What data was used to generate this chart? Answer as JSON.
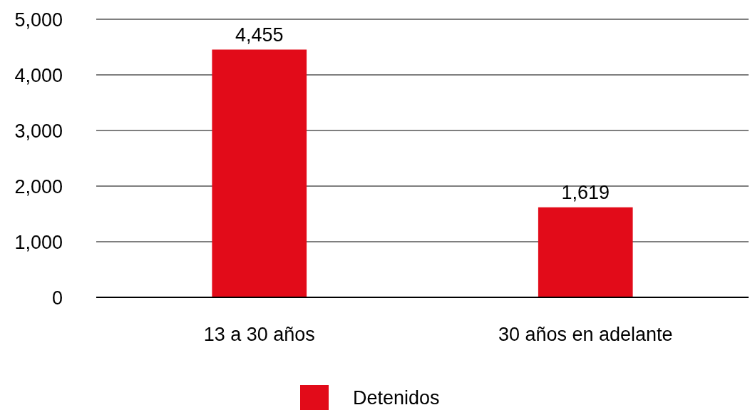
{
  "chart_data": {
    "type": "bar",
    "categories": [
      "13 a 30 años",
      "30 años en adelante"
    ],
    "series": [
      {
        "name": "Detenidos",
        "color": "#e20b19",
        "values": [
          4455,
          1619
        ],
        "value_labels": [
          "4,455",
          "1,619"
        ]
      }
    ],
    "ylim": [
      0,
      5000
    ],
    "yticks": [
      {
        "value": 0,
        "label": "0"
      },
      {
        "value": 1000,
        "label": "1,000"
      },
      {
        "value": 2000,
        "label": "2,000"
      },
      {
        "value": 3000,
        "label": "3,000"
      },
      {
        "value": 4000,
        "label": "4,000"
      },
      {
        "value": 5000,
        "label": "5,000"
      }
    ],
    "grid": "y",
    "legend": "bottom"
  }
}
